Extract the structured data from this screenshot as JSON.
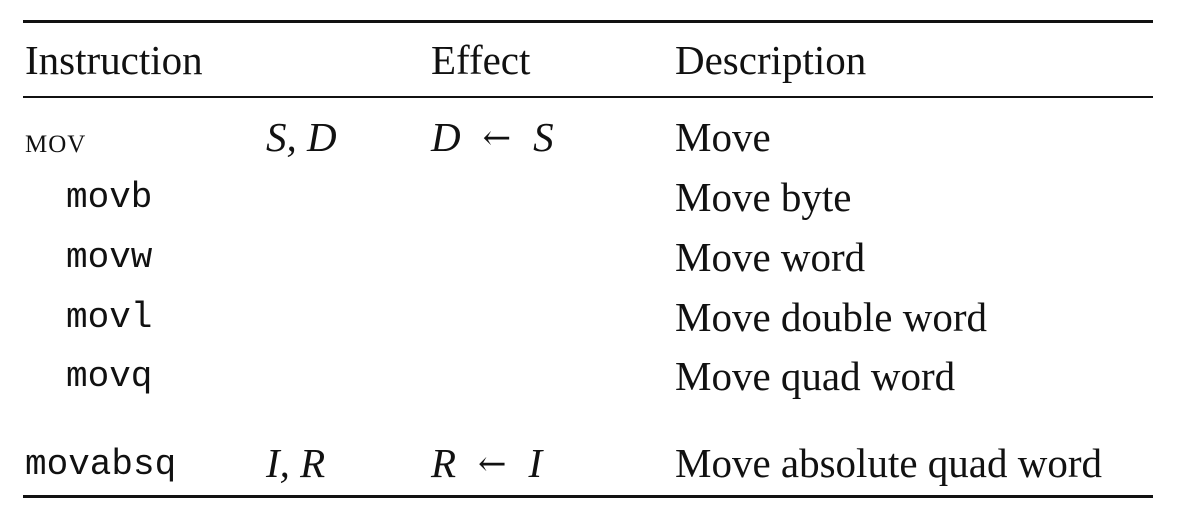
{
  "header": {
    "instruction": "Instruction",
    "effect": "Effect",
    "description": "Description"
  },
  "mov_group": {
    "name": "MOV",
    "operands": "S, D",
    "effect_dest": "D",
    "arrow": "←",
    "effect_src": "S",
    "description": "Move",
    "variants": [
      {
        "name": "movb",
        "description": "Move byte"
      },
      {
        "name": "movw",
        "description": "Move word"
      },
      {
        "name": "movl",
        "description": "Move double word"
      },
      {
        "name": "movq",
        "description": "Move quad word"
      }
    ]
  },
  "movabsq": {
    "name": "movabsq",
    "operands": "I, R",
    "effect_dest": "R",
    "arrow": "←",
    "effect_src": "I",
    "description": "Move absolute quad word"
  }
}
